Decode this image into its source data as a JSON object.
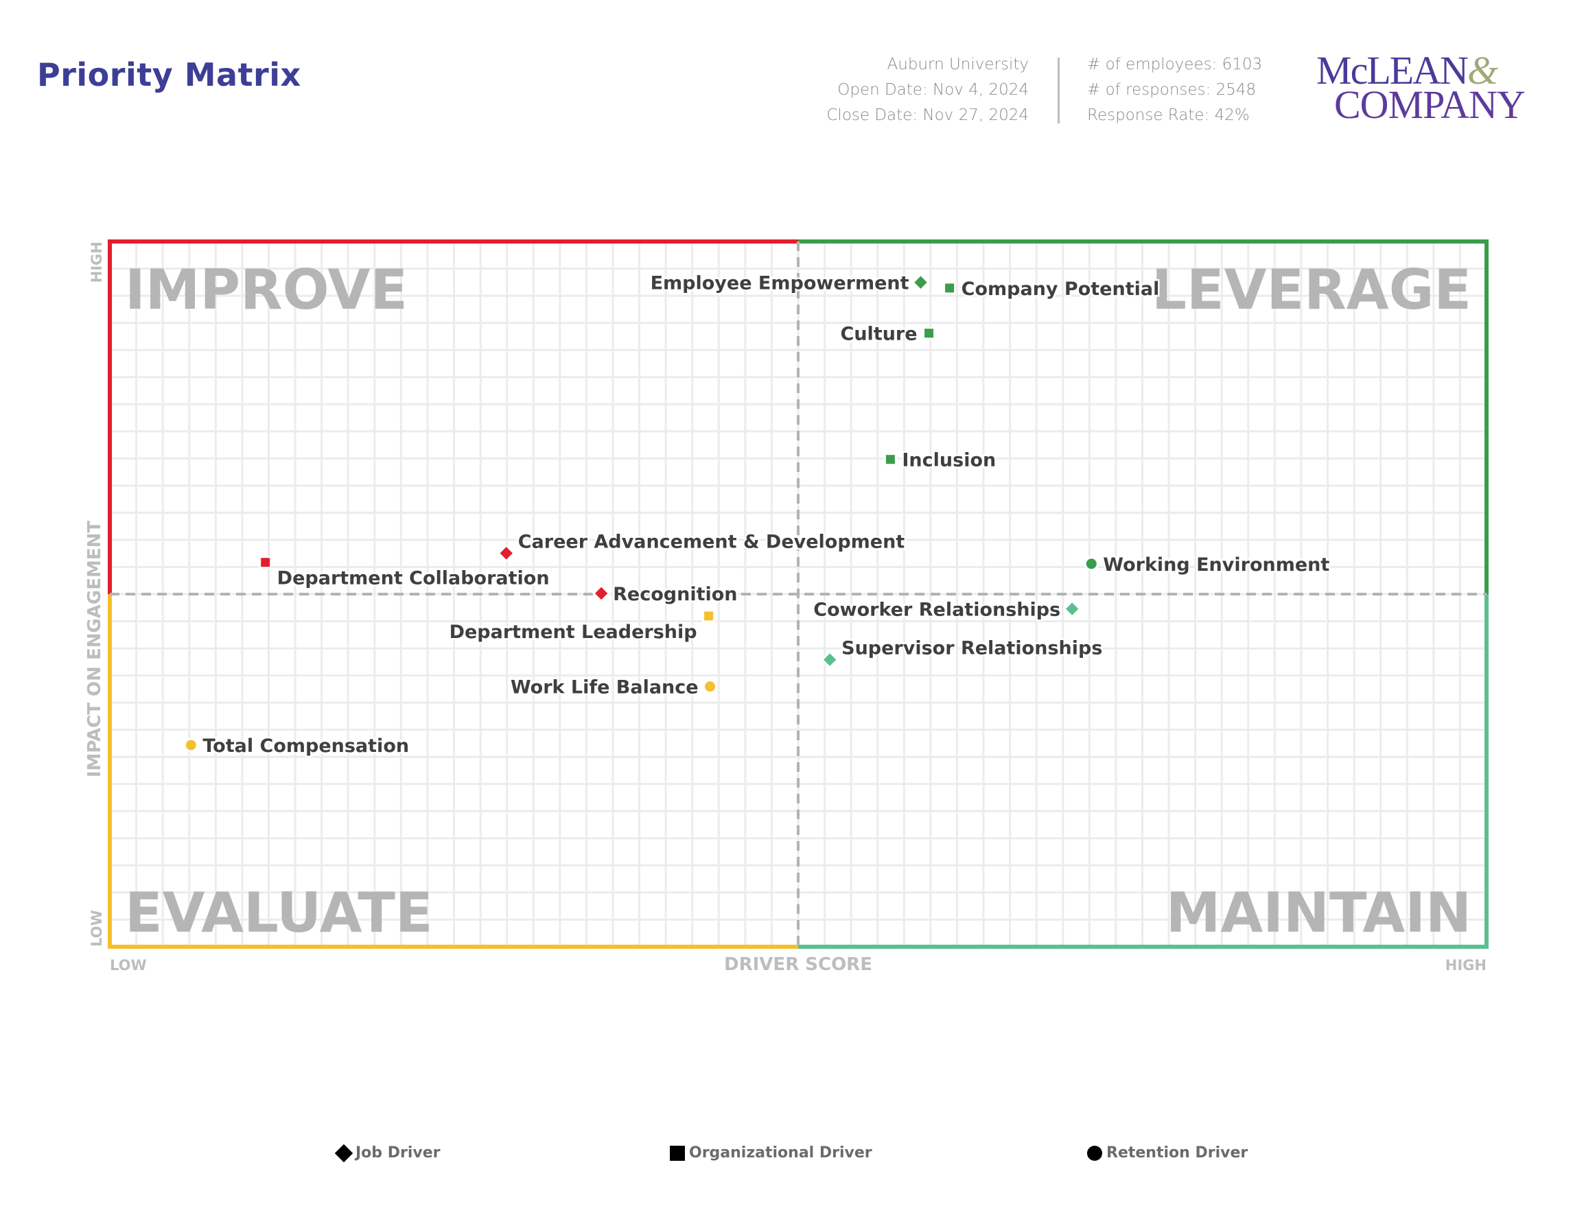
{
  "header": {
    "title": "Priority Matrix",
    "organization": "Auburn University",
    "open_date": "Open Date: Nov 4, 2024",
    "close_date": "Close Date: Nov 27, 2024",
    "employees": "# of employees: 6103",
    "responses": "# of responses: 2548",
    "response_rate": "Response Rate: 42%",
    "logo_line1": "McLEAN",
    "logo_amp": "&",
    "logo_line2": "COMPANY"
  },
  "legend": [
    {
      "label": "Job Driver",
      "shape": "diamond"
    },
    {
      "label": "Organizational Driver",
      "shape": "square"
    },
    {
      "label": "Retention Driver",
      "shape": "circle"
    }
  ],
  "chart_data": {
    "type": "scatter",
    "xlabel": "DRIVER SCORE",
    "ylabel": "IMPACT ON ENGAGEMENT",
    "x_low_label": "LOW",
    "x_high_label": "HIGH",
    "y_low_label": "LOW",
    "y_high_label": "HIGH",
    "xlim": [
      0,
      100
    ],
    "ylim": [
      0,
      100
    ],
    "x_divider": 50,
    "y_divider": 50,
    "grid": true,
    "legend_position": "bottom",
    "quadrants": {
      "top_left": {
        "label": "IMPROVE",
        "color": "#e31e2d"
      },
      "top_right": {
        "label": "LEVERAGE",
        "color": "#3a9d4a"
      },
      "bottom_left": {
        "label": "EVALUATE",
        "color": "#f5c02e"
      },
      "bottom_right": {
        "label": "MAINTAIN",
        "color": "#5bc08f"
      }
    },
    "points": [
      {
        "label": "Employee Empowerment",
        "x": 58.9,
        "y": 94.2,
        "shape": "diamond",
        "color": "#3a9d4a"
      },
      {
        "label": "Company Potential",
        "x": 61.0,
        "y": 93.4,
        "shape": "square",
        "color": "#3a9d4a"
      },
      {
        "label": "Culture",
        "x": 59.5,
        "y": 87.0,
        "shape": "square",
        "color": "#3a9d4a"
      },
      {
        "label": "Inclusion",
        "x": 56.7,
        "y": 69.1,
        "shape": "square",
        "color": "#3a9d4a"
      },
      {
        "label": "Working Environment",
        "x": 71.3,
        "y": 54.3,
        "shape": "circle",
        "color": "#3a9d4a"
      },
      {
        "label": "Coworker Relationships",
        "x": 69.9,
        "y": 47.9,
        "shape": "diamond",
        "color": "#5bc08f"
      },
      {
        "label": "Supervisor Relationships",
        "x": 52.3,
        "y": 40.7,
        "shape": "diamond",
        "color": "#5bc08f"
      },
      {
        "label": "Career Advancement & Development",
        "x": 28.8,
        "y": 55.8,
        "shape": "diamond",
        "color": "#e31e2d"
      },
      {
        "label": "Department Collaboration",
        "x": 11.3,
        "y": 54.5,
        "shape": "square",
        "color": "#e31e2d"
      },
      {
        "label": "Recognition",
        "x": 35.7,
        "y": 50.1,
        "shape": "diamond",
        "color": "#e31e2d"
      },
      {
        "label": "Department Leadership",
        "x": 43.5,
        "y": 46.9,
        "shape": "square",
        "color": "#f5c02e"
      },
      {
        "label": "Work Life Balance",
        "x": 43.6,
        "y": 36.9,
        "shape": "circle",
        "color": "#f5c02e"
      },
      {
        "label": "Total Compensation",
        "x": 5.9,
        "y": 28.6,
        "shape": "circle",
        "color": "#f5c02e"
      }
    ]
  }
}
